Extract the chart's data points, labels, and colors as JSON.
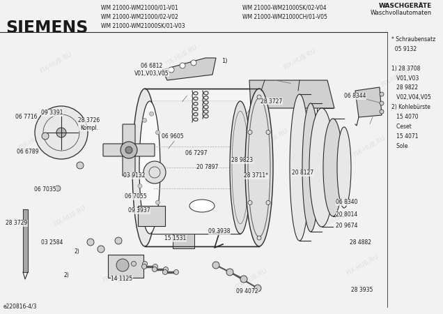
{
  "title": "SIEMENS",
  "header_models_left": [
    "WM 21000-WM21000/01-V01",
    "WM 21000-WM21000/02-V02",
    "WM 21000-WM21000SK/01-V03"
  ],
  "header_models_right": [
    "WM 21000-WM21000SK/02-V04",
    "WM 21000-WM21000CH/01-V05"
  ],
  "header_category": "WASCHGERÄTE",
  "header_subcategory": "Waschvollautomaten",
  "footer_code": "e220816-4/3",
  "sidebar_notes": "* Schraubensatz\n  05 9132\n\n1) 28 3708\n   V01,V03\n   28 9822\n   V02,V04,V05\n2) Kohlebürste\n   15 4070\n   Ceset\n   15 4071\n   Sole",
  "bg_color": "#f2f2f2",
  "text_color": "#1a1a1a",
  "line_color": "#2a2a2a",
  "watermark": "FIX-HUB.RU",
  "figsize": [
    6.36,
    4.5
  ],
  "dpi": 100
}
